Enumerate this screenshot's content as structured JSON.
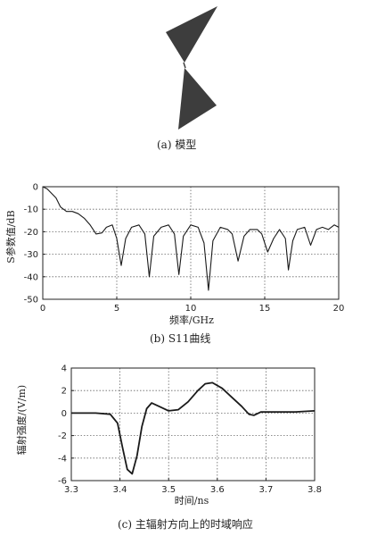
{
  "captions": {
    "a": "(a) 模型",
    "b": "(b) S11曲线",
    "c": "(c) 主辐射方向上的时域响应"
  },
  "chart_data": [
    {
      "type": "line",
      "title": "S11曲线",
      "xlabel": "频率/GHz",
      "ylabel": "S参数值/dB",
      "xlim": [
        0,
        20
      ],
      "ylim": [
        -50,
        0
      ],
      "xticks": [
        0,
        5,
        10,
        15,
        20
      ],
      "yticks": [
        0,
        -10,
        -20,
        -30,
        -40,
        -50
      ],
      "grid": true,
      "series": [
        {
          "x": [
            0,
            0.3,
            0.6,
            0.9,
            1.2,
            1.6,
            2.0,
            2.4,
            2.8,
            3.2,
            3.6,
            4.0,
            4.3,
            4.7,
            5.0,
            5.3,
            5.6,
            6.0,
            6.5,
            6.9,
            7.2,
            7.5,
            8.0,
            8.5,
            8.9,
            9.2,
            9.5,
            10.0,
            10.5,
            10.9,
            11.2,
            11.5,
            12.0,
            12.5,
            12.8,
            13.2,
            13.6,
            14.0,
            14.5,
            14.8,
            15.2,
            15.6,
            16.0,
            16.4,
            16.6,
            16.9,
            17.2,
            17.7,
            18.1,
            18.5,
            18.9,
            19.3,
            19.7,
            20.0
          ],
          "y": [
            0,
            -1,
            -3,
            -5,
            -9,
            -11,
            -11,
            -12,
            -14,
            -17,
            -21,
            -20.5,
            -18,
            -17,
            -23,
            -35,
            -23,
            -18,
            -17,
            -21,
            -40,
            -22,
            -18,
            -17,
            -21,
            -39,
            -22,
            -17,
            -18,
            -25,
            -46,
            -24,
            -18,
            -19,
            -21,
            -33,
            -22,
            -19,
            -19,
            -21,
            -29,
            -23,
            -19,
            -23,
            -37,
            -24,
            -19,
            -18,
            -26,
            -19,
            -18,
            -19,
            -17,
            -18
          ]
        }
      ]
    },
    {
      "type": "line",
      "title": "主辐射方向上的时域响应",
      "xlabel": "时间/ns",
      "ylabel": "辐射强度/(V/m)",
      "xlim": [
        3.3,
        3.8
      ],
      "ylim": [
        -6,
        4
      ],
      "xticks": [
        "3.3",
        "3.4",
        "3.5",
        "3.6",
        "3.7",
        "3.8"
      ],
      "yticks": [
        4,
        2,
        0,
        -2,
        -4,
        -6
      ],
      "grid": true,
      "series": [
        {
          "x": [
            3.3,
            3.35,
            3.38,
            3.395,
            3.405,
            3.415,
            3.425,
            3.435,
            3.445,
            3.455,
            3.465,
            3.48,
            3.5,
            3.52,
            3.54,
            3.56,
            3.575,
            3.59,
            3.61,
            3.63,
            3.65,
            3.665,
            3.675,
            3.69,
            3.72,
            3.76,
            3.8
          ],
          "y": [
            0,
            0,
            -0.1,
            -0.9,
            -3.0,
            -5.0,
            -5.4,
            -3.8,
            -1.2,
            0.4,
            0.9,
            0.6,
            0.2,
            0.3,
            1.0,
            2.0,
            2.6,
            2.7,
            2.2,
            1.4,
            0.6,
            -0.1,
            -0.2,
            0.1,
            0.1,
            0.1,
            0.2
          ]
        }
      ]
    }
  ]
}
